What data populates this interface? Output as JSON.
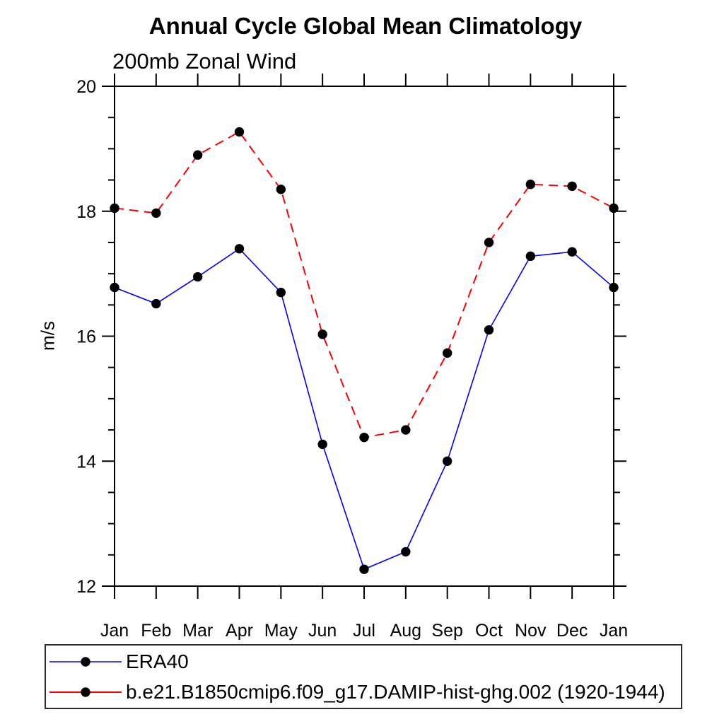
{
  "chart_data": {
    "type": "line",
    "title": "Annual Cycle Global Mean Climatology",
    "subtitle": "200mb Zonal Wind",
    "ylabel": "m/s",
    "xlabel": "",
    "categories": [
      "Jan",
      "Feb",
      "Mar",
      "Apr",
      "May",
      "Jun",
      "Jul",
      "Aug",
      "Sep",
      "Oct",
      "Nov",
      "Dec",
      "Jan"
    ],
    "ylim": [
      12,
      20
    ],
    "ytick_major": [
      12,
      14,
      16,
      18,
      20
    ],
    "ytick_minor_step": 0.5,
    "grid": false,
    "legend_position": "bottom-left-box",
    "axis_color": "#000000",
    "marker_color": "#000000",
    "series": [
      {
        "name": "ERA40",
        "color": "#0000ff",
        "style": "solid",
        "marker": "filled-circle",
        "values": [
          16.78,
          16.52,
          16.95,
          17.4,
          16.7,
          14.27,
          12.27,
          12.55,
          14.0,
          16.1,
          17.28,
          17.35,
          16.78
        ]
      },
      {
        "name": "b.e21.B1850cmip6.f09_g17.DAMIP-hist-ghg.002 (1920-1944)",
        "color": "#ff0000",
        "style": "dashed",
        "marker": "filled-circle",
        "values": [
          18.05,
          17.97,
          18.9,
          19.27,
          18.35,
          16.03,
          14.38,
          14.5,
          15.73,
          17.5,
          18.43,
          18.4,
          18.05
        ]
      }
    ]
  }
}
